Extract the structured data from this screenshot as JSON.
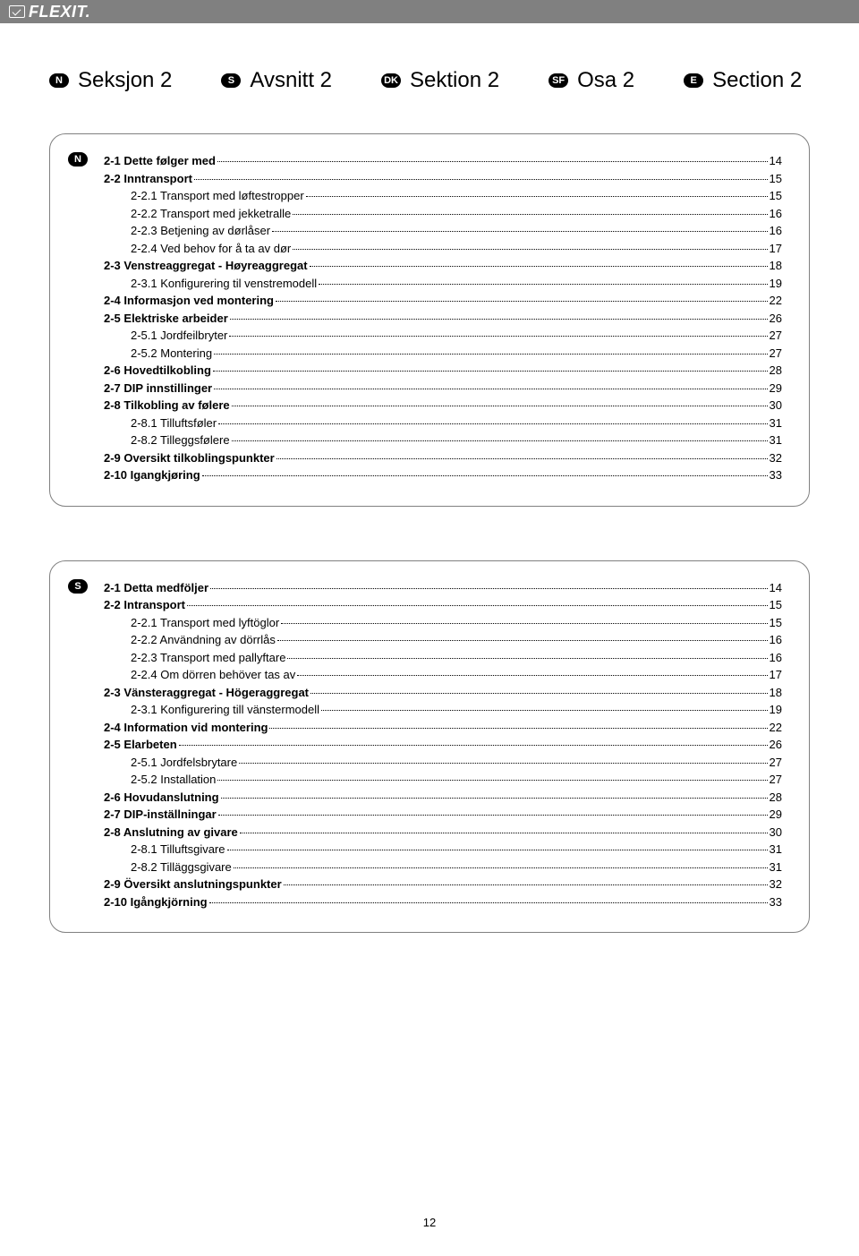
{
  "logo_text": "FLEXIT.",
  "page_number": "12",
  "tabs": [
    {
      "badge": "N",
      "label": "Seksjon 2"
    },
    {
      "badge": "S",
      "label": "Avsnitt 2"
    },
    {
      "badge": "DK",
      "label": "Sektion 2"
    },
    {
      "badge": "SF",
      "label": "Osa 2"
    },
    {
      "badge": "E",
      "label": "Section 2"
    }
  ],
  "boxes": [
    {
      "badge": "N",
      "rows": [
        {
          "label": "2-1 Dette følger med",
          "page": "14",
          "bold": true,
          "sub": false
        },
        {
          "label": "2-2 Inntransport",
          "page": "15",
          "bold": true,
          "sub": false
        },
        {
          "label": "2-2.1 Transport med løftestropper",
          "page": "15",
          "bold": false,
          "sub": true
        },
        {
          "label": "2-2.2 Transport med jekketralle",
          "page": "16",
          "bold": false,
          "sub": true
        },
        {
          "label": "2-2.3 Betjening av dørlåser",
          "page": "16",
          "bold": false,
          "sub": true
        },
        {
          "label": "2-2.4 Ved behov for å ta av dør",
          "page": "17",
          "bold": false,
          "sub": true
        },
        {
          "label": "2-3 Venstreaggregat - Høyreaggregat",
          "page": "18",
          "bold": true,
          "sub": false
        },
        {
          "label": "2-3.1 Konfigurering til venstremodell",
          "page": "19",
          "bold": false,
          "sub": true
        },
        {
          "label": "2-4 Informasjon ved montering",
          "page": "22",
          "bold": true,
          "sub": false
        },
        {
          "label": "2-5 Elektriske arbeider",
          "page": "26",
          "bold": true,
          "sub": false
        },
        {
          "label": "2-5.1 Jordfeilbryter",
          "page": "27",
          "bold": false,
          "sub": true
        },
        {
          "label": "2-5.2 Montering",
          "page": "27",
          "bold": false,
          "sub": true
        },
        {
          "label": "2-6 Hovedtilkobling",
          "page": "28",
          "bold": true,
          "sub": false
        },
        {
          "label": "2-7 DIP innstillinger",
          "page": "29",
          "bold": true,
          "sub": false
        },
        {
          "label": "2-8 Tilkobling av følere",
          "page": "30",
          "bold": true,
          "sub": false
        },
        {
          "label": "2-8.1 Tilluftsføler",
          "page": "31",
          "bold": false,
          "sub": true
        },
        {
          "label": "2-8.2 Tilleggsfølere",
          "page": "31",
          "bold": false,
          "sub": true
        },
        {
          "label": "2-9 Oversikt tilkoblingspunkter",
          "page": "32",
          "bold": true,
          "sub": false
        },
        {
          "label": "2-10 Igangkjøring",
          "page": " 33",
          "bold": true,
          "sub": false
        }
      ]
    },
    {
      "badge": "S",
      "rows": [
        {
          "label": "2-1 Detta medföljer",
          "page": "14",
          "bold": true,
          "sub": false
        },
        {
          "label": "2-2 Intransport",
          "page": "15",
          "bold": true,
          "sub": false
        },
        {
          "label": "2-2.1 Transport med lyftöglor",
          "page": "15",
          "bold": false,
          "sub": true
        },
        {
          "label": "2-2.2 Användning av dörrlås",
          "page": "16",
          "bold": false,
          "sub": true
        },
        {
          "label": "2-2.3 Transport med pallyftare",
          "page": "16",
          "bold": false,
          "sub": true
        },
        {
          "label": "2-2.4 Om dörren behöver tas av",
          "page": "17",
          "bold": false,
          "sub": true
        },
        {
          "label": "2-3 Vänsteraggregat - Högeraggregat",
          "page": "18",
          "bold": true,
          "sub": false
        },
        {
          "label": "2-3.1  Konfigurering till vänstermodell",
          "page": "19",
          "bold": false,
          "sub": true
        },
        {
          "label": "2-4 Information vid montering",
          "page": "22",
          "bold": true,
          "sub": false
        },
        {
          "label": "2-5 Elarbeten",
          "page": "26",
          "bold": true,
          "sub": false
        },
        {
          "label": "2-5.1 Jordfelsbrytare",
          "page": "27",
          "bold": false,
          "sub": true
        },
        {
          "label": "2-5.2 Installation",
          "page": "27",
          "bold": false,
          "sub": true
        },
        {
          "label": "2-6 Hovudanslutning",
          "page": "28",
          "bold": true,
          "sub": false
        },
        {
          "label": "2-7 DIP-inställningar",
          "page": "29",
          "bold": true,
          "sub": false
        },
        {
          "label": "2-8 Anslutning av givare",
          "page": "30",
          "bold": true,
          "sub": false
        },
        {
          "label": "2-8.1 Tilluftsgivare",
          "page": "31",
          "bold": false,
          "sub": true
        },
        {
          "label": "2-8.2 Tilläggsgivare",
          "page": "31",
          "bold": false,
          "sub": true
        },
        {
          "label": "2-9 Översikt anslutningspunkter",
          "page": "32",
          "bold": true,
          "sub": false
        },
        {
          "label": "2-10 Igångkjörning",
          "page": " 33",
          "bold": true,
          "sub": false
        }
      ]
    }
  ]
}
